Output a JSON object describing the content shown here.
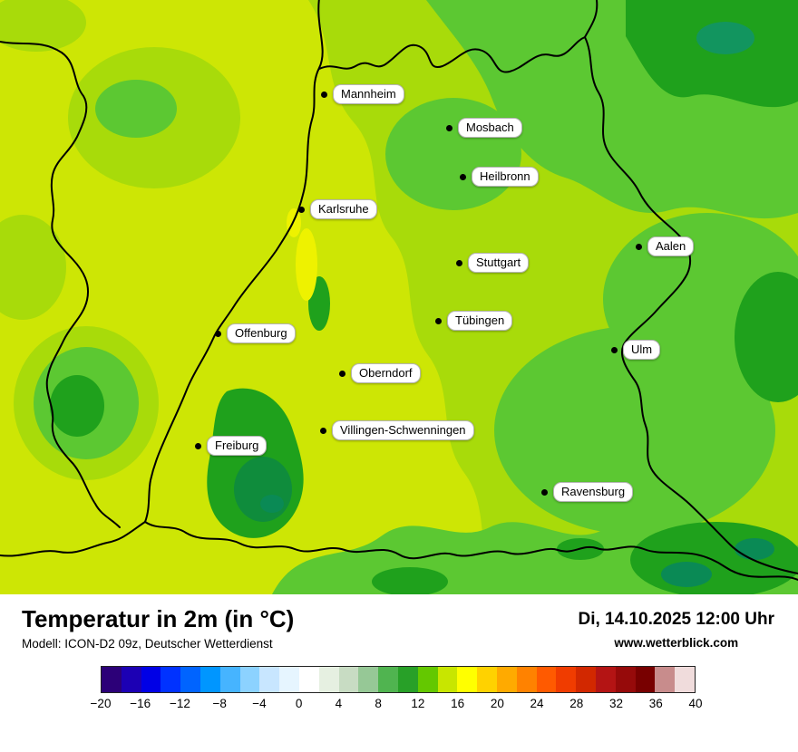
{
  "header": {
    "title": "Temperatur in 2m (in °C)",
    "model_line": "Modell: ICON-D2 09z, Deutscher Wetterdienst",
    "datetime": "Di, 14.10.2025 12:00 Uhr",
    "website": "www.wetterblick.com"
  },
  "map": {
    "cities": [
      {
        "name": "Mannheim"
      },
      {
        "name": "Mosbach"
      },
      {
        "name": "Heilbronn"
      },
      {
        "name": "Karlsruhe"
      },
      {
        "name": "Aalen"
      },
      {
        "name": "Stuttgart"
      },
      {
        "name": "Tübingen"
      },
      {
        "name": "Offenburg"
      },
      {
        "name": "Ulm"
      },
      {
        "name": "Oberndorf"
      },
      {
        "name": "Villingen-Schwenningen"
      },
      {
        "name": "Freiburg"
      },
      {
        "name": "Ravensburg"
      }
    ],
    "palette": {
      "warm_yellow_green": "#cde605",
      "mid_green": "#a8db0a",
      "green": "#5cc832",
      "dark_green": "#1fa11c",
      "teal_green": "#0a8a55",
      "yellow_spot": "#eef200",
      "border": "#000000"
    }
  },
  "legend": {
    "ticks": [
      "−20",
      "−16",
      "−12",
      "−8",
      "−4",
      "0",
      "4",
      "8",
      "12",
      "16",
      "20",
      "24",
      "28",
      "32",
      "36",
      "40"
    ],
    "colors": [
      "#2c0078",
      "#1c00b4",
      "#0000e6",
      "#0032ff",
      "#0064ff",
      "#0096ff",
      "#46b4ff",
      "#8cd2ff",
      "#c8e6ff",
      "#e6f5ff",
      "#ffffff",
      "#e6f0e1",
      "#c8dcc3",
      "#96c896",
      "#50b450",
      "#28a028",
      "#64c800",
      "#c8e600",
      "#ffff00",
      "#ffd200",
      "#ffaa00",
      "#ff8200",
      "#ff5a00",
      "#f03c00",
      "#d22800",
      "#b41414",
      "#960a0a",
      "#780000",
      "#c88c8c",
      "#f0dcdc"
    ]
  }
}
